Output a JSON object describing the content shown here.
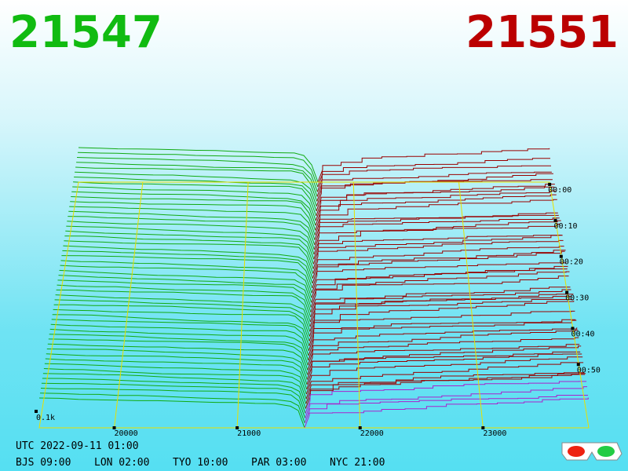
{
  "header": {
    "bid": "21547",
    "ask": "21551"
  },
  "price_axis": {
    "xlim": [
      19390,
      23860
    ],
    "ticks": [
      20000,
      21000,
      22000,
      23000
    ]
  },
  "volume_label": "0.1k",
  "time_labels": [
    "00:00",
    "00:10",
    "00:20",
    "00:30",
    "00:40",
    "00:50"
  ],
  "footer": {
    "utc": "UTC 2022-09-11 01:00",
    "zones": [
      "BJS 09:00",
      "LON 02:00",
      "TYO 10:00",
      "PAR 03:00",
      "NYC 21:00"
    ]
  }
}
